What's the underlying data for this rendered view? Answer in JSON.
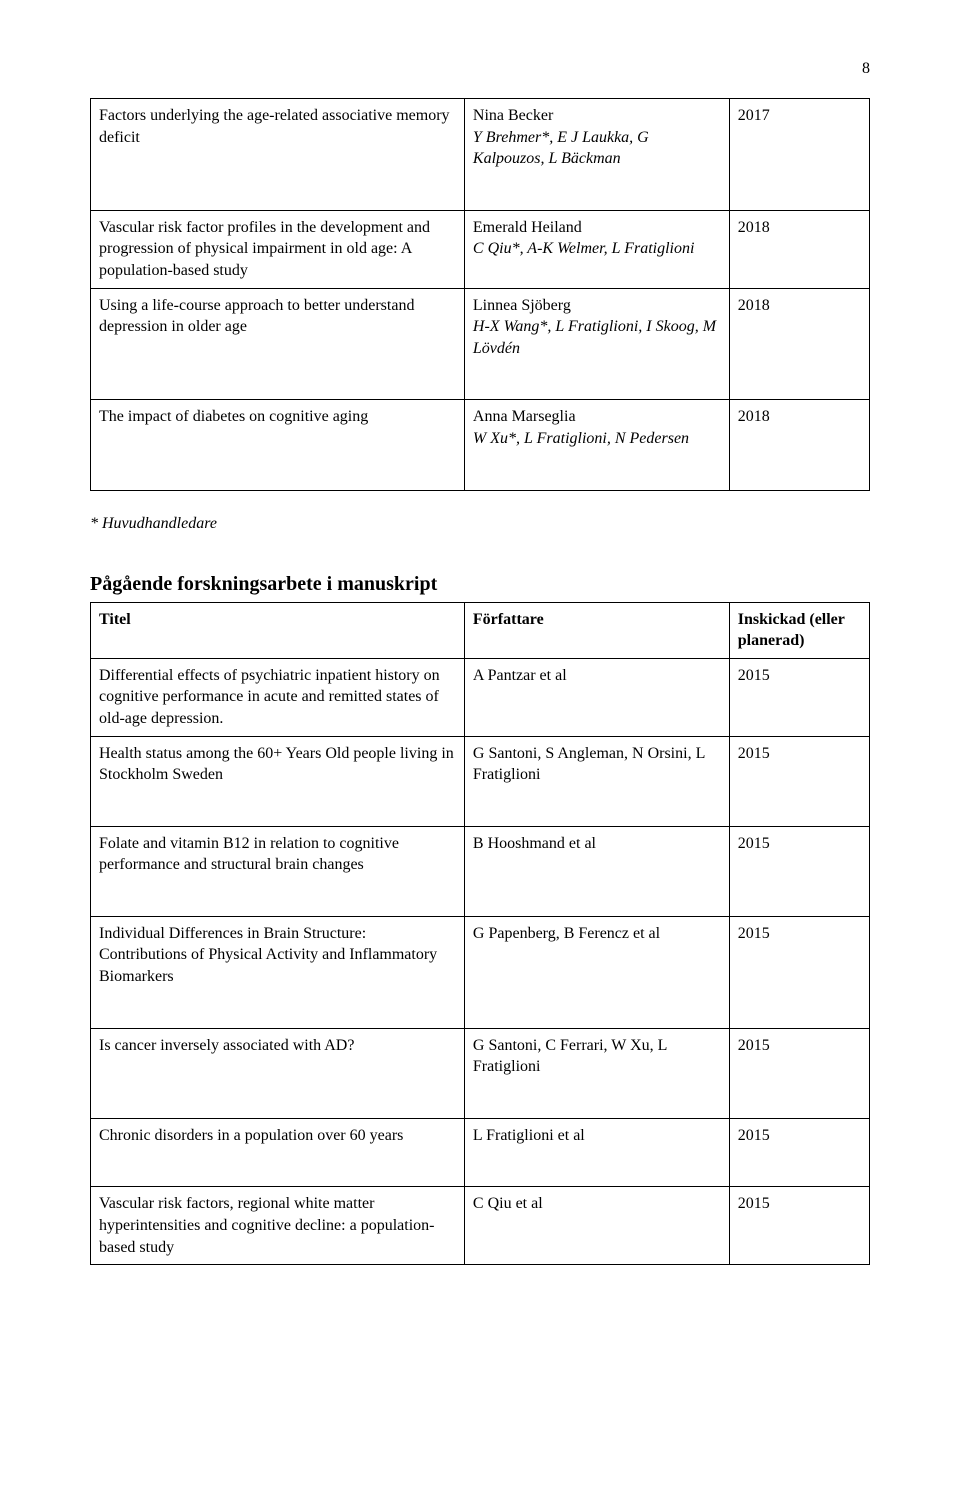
{
  "page_number": "8",
  "table1": {
    "rows": [
      {
        "c1": "Factors underlying the age-related associative memory deficit",
        "c2_main": "Nina Becker",
        "c2_italic": "Y Brehmer*, E J Laukka, G Kalpouzos, L Bäckman",
        "c3": "2017"
      },
      {
        "c1": "Vascular risk factor profiles in the development and progression of physical impairment in old age: A population-based study",
        "c2_main": "Emerald Heiland",
        "c2_italic": "C Qiu*, A-K Welmer, L Fratiglioni",
        "c3": "2018"
      },
      {
        "c1": "Using a life-course approach to better understand depression in older age",
        "c2_main": "Linnea Sjöberg",
        "c2_italic": "H-X Wang*, L Fratiglioni, I Skoog, M Lövdén",
        "c3": "2018"
      },
      {
        "c1": "The impact of diabetes on cognitive aging",
        "c2_main": "Anna Marseglia",
        "c2_italic": "W Xu*, L Fratiglioni, N Pedersen",
        "c3": "2018"
      }
    ]
  },
  "footnote": "* Huvudhandledare",
  "section2_title": "Pågående forskningsarbete i manuskript",
  "table2": {
    "headers": {
      "c1": "Titel",
      "c2": "Författare",
      "c3": "Inskickad (eller planerad)"
    },
    "rows": [
      {
        "c1": "Differential effects of psychiatric inpatient history on cognitive performance in acute and remitted states of old-age depression.",
        "c2": "A Pantzar et al",
        "c3": "2015"
      },
      {
        "c1": "Health status among the 60+ Years Old people living in Stockholm Sweden",
        "c2": "G Santoni, S Angleman, N Orsini, L Fratiglioni",
        "c3": "2015"
      },
      {
        "c1": "Folate and vitamin B12 in relation to cognitive performance and structural brain changes",
        "c2": "B Hooshmand et al",
        "c3": "2015"
      },
      {
        "c1": "Individual Differences in Brain Structure: Contributions of Physical Activity and Inflammatory Biomarkers",
        "c2": "G Papenberg, B Ferencz et al",
        "c3": "2015"
      },
      {
        "c1": "Is cancer inversely associated with AD?",
        "c2": "G Santoni, C Ferrari, W Xu, L Fratiglioni",
        "c3": "2015"
      },
      {
        "c1": "Chronic disorders in a population over 60 years",
        "c2": "L Fratiglioni et al",
        "c3": "2015"
      },
      {
        "c1": "Vascular risk factors, regional white matter hyperintensities and cognitive decline: a population-based study",
        "c2": "C Qiu et al",
        "c3": "2015"
      }
    ]
  }
}
